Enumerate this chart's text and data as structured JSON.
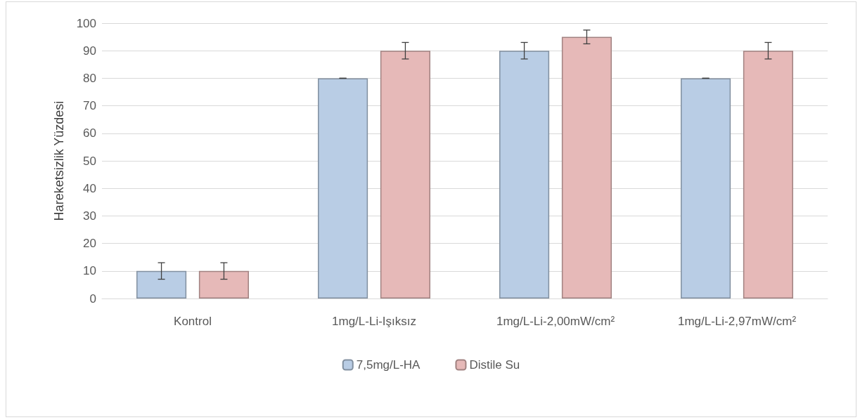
{
  "chart_data": {
    "type": "bar",
    "ylabel": "Hareketsizlik Yüzdesi",
    "categories": [
      "Kontrol",
      "1mg/L-Li-Işıksız",
      "1mg/L-Li-2,00mW/cm²",
      "1mg/L-Li-2,97mW/cm²"
    ],
    "series": [
      {
        "name": "7,5mg/L-HA",
        "color": "#b9cde5",
        "values": [
          10,
          80,
          90,
          80
        ],
        "errors": [
          3,
          0,
          3,
          0
        ]
      },
      {
        "name": "Distile Su",
        "color": "#e6b9b8",
        "values": [
          10,
          90,
          95,
          90
        ],
        "errors": [
          3,
          3,
          2.5,
          3
        ]
      }
    ],
    "ylim": [
      0,
      100
    ],
    "yticks": [
      0,
      10,
      20,
      30,
      40,
      50,
      60,
      70,
      80,
      90,
      100
    ],
    "grid": "y",
    "legend": "bottom"
  }
}
